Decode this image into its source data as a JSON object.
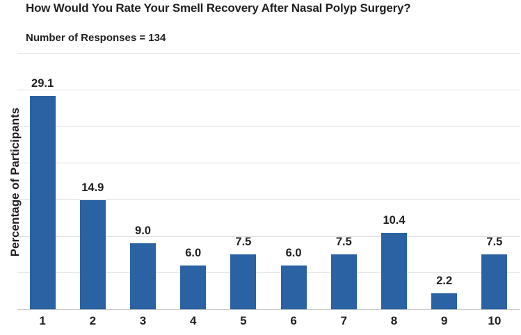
{
  "title": "How Would You Rate Your Smell Recovery After Nasal Polyp Surgery?",
  "subtitle": "Number of Responses = 134",
  "chart_data": {
    "type": "bar",
    "title": "How Would You Rate Your Smell Recovery After Nasal Polyp Surgery?",
    "subtitle": "Number of Responses = 134",
    "categories": [
      "1",
      "2",
      "3",
      "4",
      "5",
      "6",
      "7",
      "8",
      "9",
      "10"
    ],
    "values": [
      29.1,
      14.9,
      9.0,
      6.0,
      7.5,
      6.0,
      7.5,
      10.4,
      2.2,
      7.5
    ],
    "value_labels": [
      "29.1",
      "14.9",
      "9.0",
      "6.0",
      "7.5",
      "6.0",
      "7.5",
      "10.4",
      "2.2",
      "7.5"
    ],
    "xlabel": "",
    "ylabel": "Percentage of Participants",
    "ylim": [
      0,
      35
    ],
    "gridline_step": 5,
    "grid": "horizontal",
    "y_tick_labels_shown": false,
    "legend": "none",
    "bar_color": "#2a62a3",
    "gridline_color": "#dcdcdc",
    "axis_line_color": "#c6c6c6",
    "text_color": "#1f1f1f",
    "background_color": "#ffffff"
  }
}
